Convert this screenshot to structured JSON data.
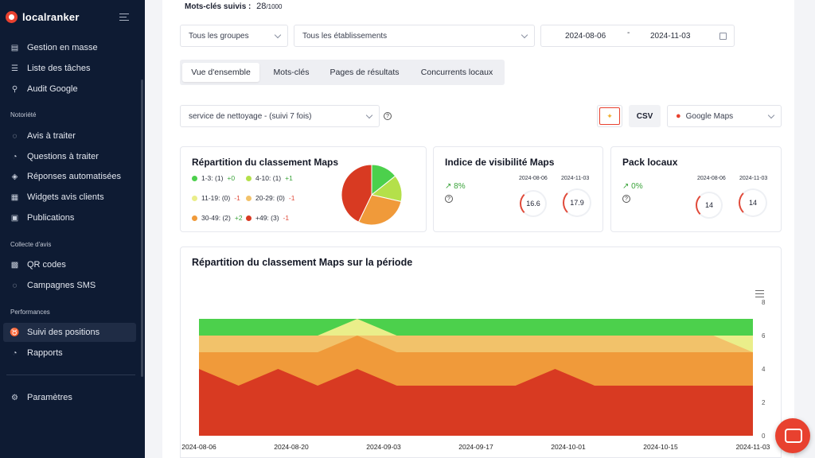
{
  "app": {
    "name": "localranker"
  },
  "sidebar": {
    "items_top": [
      {
        "label": "Gestion en masse",
        "icon": "file-icon"
      },
      {
        "label": "Liste des tâches",
        "icon": "list-icon"
      },
      {
        "label": "Audit Google",
        "icon": "search-icon"
      }
    ],
    "section_notoriete": "Notoriété",
    "items_notoriete": [
      {
        "label": "Avis à traiter",
        "icon": "chat-icon"
      },
      {
        "label": "Questions à traiter",
        "icon": "question-icon"
      },
      {
        "label": "Réponses automatisées",
        "icon": "bot-icon"
      },
      {
        "label": "Widgets avis clients",
        "icon": "widget-icon"
      },
      {
        "label": "Publications",
        "icon": "calendar-icon"
      }
    ],
    "section_collecte": "Collecte d'avis",
    "items_collecte": [
      {
        "label": "QR codes",
        "icon": "qrcode-icon"
      },
      {
        "label": "Campagnes SMS",
        "icon": "sms-icon"
      }
    ],
    "section_performances": "Performances",
    "items_performances": [
      {
        "label": "Suivi des positions",
        "icon": "ranking-icon",
        "active": true
      },
      {
        "label": "Rapports",
        "icon": "report-icon"
      }
    ],
    "settings_label": "Paramètres"
  },
  "header": {
    "keywords_label": "Mots-clés suivis :",
    "keywords_used": "28",
    "keywords_max": "/1000"
  },
  "filters": {
    "groups": "Tous les groupes",
    "establishments": "Tous les établissements",
    "date_start": "2024-08-06",
    "date_sep": "-",
    "date_end": "2024-11-03"
  },
  "tabs": [
    {
      "label": "Vue d'ensemble",
      "active": true
    },
    {
      "label": "Mots-clés"
    },
    {
      "label": "Pages de résultats"
    },
    {
      "label": "Concurrents locaux"
    }
  ],
  "keyword_select": "service de nettoyage - (suivi 7 fois)",
  "csv_label": "CSV",
  "source_select": "Google Maps",
  "cards": {
    "distribution": {
      "title": "Répartition du classement Maps",
      "legend": [
        {
          "label": "1-3: (1)",
          "delta": "+0",
          "dir": "up",
          "color": "#4cd04c"
        },
        {
          "label": "4-10: (1)",
          "delta": "+1",
          "dir": "up",
          "color": "#b4e04a"
        },
        {
          "label": "11-19: (0)",
          "delta": "-1",
          "dir": "down",
          "color": "#eaee8a"
        },
        {
          "label": "20-29: (0)",
          "delta": "-1",
          "dir": "down",
          "color": "#f2c26a"
        },
        {
          "label": "30-49: (2)",
          "delta": "+2",
          "dir": "up",
          "color": "#f09a3a"
        },
        {
          "label": "+49: (3)",
          "delta": "-1",
          "dir": "down",
          "color": "#d83a22"
        }
      ]
    },
    "visibility": {
      "title": "Indice de visibilité Maps",
      "trend": "8%",
      "d1": "2024-08-06",
      "v1": "16.6",
      "d2": "2024-11-03",
      "v2": "17.9"
    },
    "localpack": {
      "title": "Pack locaux",
      "trend": "0%",
      "d1": "2024-08-06",
      "v1": "14",
      "d2": "2024-11-03",
      "v2": "14"
    }
  },
  "chart_data": {
    "type": "area",
    "title": "Répartition du classement Maps sur la période",
    "x_ticks": [
      "2024-08-06",
      "2024-08-20",
      "2024-09-03",
      "2024-09-17",
      "2024-10-01",
      "2024-10-15",
      "2024-11-03"
    ],
    "y_ticks": [
      "0",
      "2",
      "4",
      "6",
      "8"
    ],
    "ylim": [
      0,
      8
    ],
    "stacked": true,
    "layers_cumulative": [
      {
        "color": "#d83a22",
        "values": [
          4,
          3,
          4,
          3,
          4,
          3,
          3,
          3,
          3,
          4,
          3,
          3,
          3,
          3,
          3
        ]
      },
      {
        "color": "#f09a3a",
        "values": [
          5,
          5,
          5,
          5,
          6,
          5,
          5,
          5,
          5,
          5,
          5,
          5,
          5,
          5,
          5
        ]
      },
      {
        "color": "#f2c26a",
        "values": [
          6,
          6,
          6,
          6,
          6,
          6,
          6,
          6,
          6,
          6,
          6,
          6,
          6,
          6,
          5
        ]
      },
      {
        "color": "#eaee8a",
        "values": [
          6,
          6,
          6,
          6,
          7,
          6,
          6,
          6,
          6,
          6,
          6,
          6,
          6,
          6,
          6
        ]
      },
      {
        "color": "#4cd04c",
        "values": [
          7,
          7,
          7,
          7,
          7,
          7,
          7,
          7,
          7,
          7,
          7,
          7,
          7,
          7,
          7
        ]
      }
    ]
  }
}
